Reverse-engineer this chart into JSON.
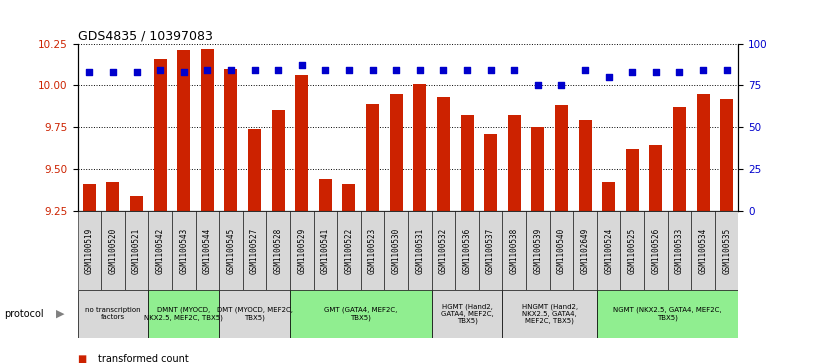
{
  "title": "GDS4835 / 10397083",
  "samples": [
    "GSM1100519",
    "GSM1100520",
    "GSM1100521",
    "GSM1100542",
    "GSM1100543",
    "GSM1100544",
    "GSM1100545",
    "GSM1100527",
    "GSM1100528",
    "GSM1100529",
    "GSM1100541",
    "GSM1100522",
    "GSM1100523",
    "GSM1100530",
    "GSM1100531",
    "GSM1100532",
    "GSM1100536",
    "GSM1100537",
    "GSM1100538",
    "GSM1100539",
    "GSM1100540",
    "GSM1102649",
    "GSM1100524",
    "GSM1100525",
    "GSM1100526",
    "GSM1100533",
    "GSM1100534",
    "GSM1100535"
  ],
  "bar_values": [
    9.41,
    9.42,
    9.34,
    10.16,
    10.21,
    10.22,
    10.1,
    9.74,
    9.85,
    10.06,
    9.44,
    9.41,
    9.89,
    9.95,
    10.01,
    9.93,
    9.82,
    9.71,
    9.82,
    9.75,
    9.88,
    9.79,
    9.42,
    9.62,
    9.64,
    9.87,
    9.95,
    9.92
  ],
  "percentile_values": [
    83,
    83,
    83,
    84,
    83,
    84,
    84,
    84,
    84,
    87,
    84,
    84,
    84,
    84,
    84,
    84,
    84,
    84,
    84,
    75,
    75,
    84,
    80,
    83,
    83,
    83,
    84,
    84
  ],
  "bar_color": "#cc2200",
  "dot_color": "#0000cc",
  "ylim_left": [
    9.25,
    10.25
  ],
  "ylim_right": [
    0,
    100
  ],
  "yticks_left": [
    9.25,
    9.5,
    9.75,
    10.0,
    10.25
  ],
  "yticks_right": [
    0,
    25,
    50,
    75,
    100
  ],
  "protocols": [
    {
      "label": "no transcription\nfactors",
      "start": 0,
      "end": 3,
      "color": "#d8d8d8"
    },
    {
      "label": "DMNT (MYOCD,\nNKX2.5, MEF2C, TBX5)",
      "start": 3,
      "end": 6,
      "color": "#90ee90"
    },
    {
      "label": "DMT (MYOCD, MEF2C,\nTBX5)",
      "start": 6,
      "end": 9,
      "color": "#d8d8d8"
    },
    {
      "label": "GMT (GATA4, MEF2C,\nTBX5)",
      "start": 9,
      "end": 15,
      "color": "#90ee90"
    },
    {
      "label": "HGMT (Hand2,\nGATA4, MEF2C,\nTBX5)",
      "start": 15,
      "end": 18,
      "color": "#d8d8d8"
    },
    {
      "label": "HNGMT (Hand2,\nNKX2.5, GATA4,\nMEF2C, TBX5)",
      "start": 18,
      "end": 22,
      "color": "#d8d8d8"
    },
    {
      "label": "NGMT (NKX2.5, GATA4, MEF2C,\nTBX5)",
      "start": 22,
      "end": 28,
      "color": "#90ee90"
    }
  ],
  "sample_box_color": "#d8d8d8",
  "figsize": [
    8.16,
    3.63
  ],
  "dpi": 100
}
